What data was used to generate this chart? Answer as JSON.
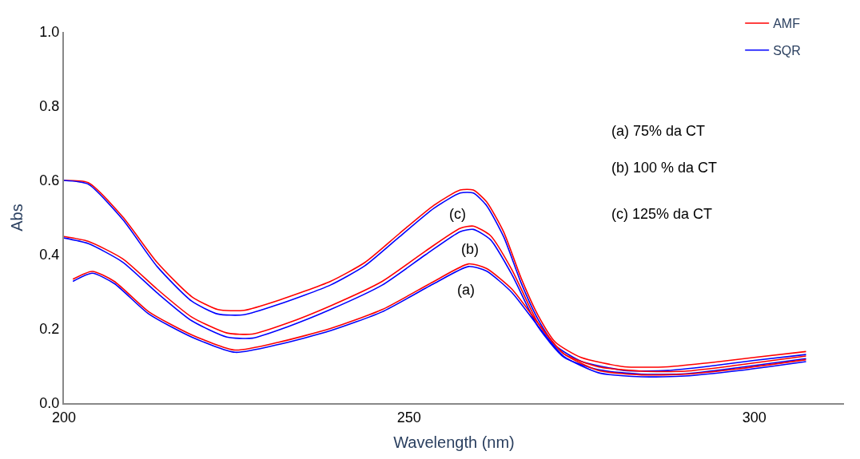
{
  "chart_data": {
    "type": "line",
    "xlabel": "Wavelength (nm)",
    "ylabel": "Abs",
    "xlim": [
      200,
      313
    ],
    "ylim": [
      0.0,
      1.0
    ],
    "xticks": [
      200,
      250,
      300
    ],
    "yticks": [
      {
        "value": 0.0,
        "label": "0.0"
      },
      0.2,
      0.4,
      0.6,
      0.8,
      {
        "value": 1.0,
        "label": "1.0"
      }
    ],
    "legend": "top right",
    "marker": "none",
    "line_style": "solid",
    "series": [
      {
        "name": "AMF",
        "color": "#ff0000",
        "x": [
          200,
          203.5,
          208.5,
          213.5,
          218.5,
          222.3,
          226.1,
          231.1,
          238.6,
          243.6,
          248.6,
          253.6,
          257.4,
          259.3,
          261.2,
          263.7,
          266.2,
          268.7,
          271.2,
          274.9,
          281.2,
          287.5,
          293.7,
          300,
          307.5
        ],
        "values": [
          0.6,
          0.594,
          0.502,
          0.379,
          0.287,
          0.252,
          0.25,
          0.277,
          0.328,
          0.379,
          0.457,
          0.533,
          0.574,
          0.574,
          0.543,
          0.461,
          0.338,
          0.236,
          0.164,
          0.123,
          0.098,
          0.098,
          0.109,
          0.123,
          0.139
        ]
      },
      {
        "name": "SQR",
        "color": "#0000ff",
        "x": [
          200,
          203.5,
          208.5,
          213.5,
          218.5,
          222.3,
          226.1,
          231.1,
          238.6,
          243.6,
          248.6,
          253.6,
          257.4,
          259.3,
          261.2,
          263.7,
          266.2,
          268.7,
          271.2,
          274.9,
          281.2,
          287.5,
          293.7,
          300,
          307.5
        ],
        "values": [
          0.6,
          0.59,
          0.495,
          0.368,
          0.275,
          0.24,
          0.238,
          0.266,
          0.318,
          0.37,
          0.448,
          0.525,
          0.566,
          0.566,
          0.533,
          0.448,
          0.325,
          0.225,
          0.155,
          0.113,
          0.088,
          0.088,
          0.1,
          0.115,
          0.131
        ]
      },
      {
        "color": "#ff0000",
        "x": [
          200,
          203.5,
          208.5,
          213.5,
          218.5,
          223.6,
          227.3,
          232.3,
          238.6,
          246.1,
          252.4,
          257.4,
          259.3,
          261.8,
          264.9,
          268.7,
          272.4,
          277.4,
          283.7,
          290,
          297.5,
          307.5
        ],
        "values": [
          0.449,
          0.436,
          0.389,
          0.307,
          0.232,
          0.189,
          0.186,
          0.215,
          0.262,
          0.328,
          0.41,
          0.471,
          0.477,
          0.451,
          0.359,
          0.215,
          0.133,
          0.098,
          0.086,
          0.086,
          0.102,
          0.127
        ]
      },
      {
        "color": "#0000ff",
        "x": [
          200,
          203.5,
          208.5,
          213.5,
          218.5,
          223.6,
          227.3,
          232.3,
          238.6,
          246.1,
          252.4,
          257.4,
          259.3,
          261.8,
          264.9,
          268.7,
          272.4,
          277.4,
          283.7,
          290,
          297.5,
          307.5
        ],
        "values": [
          0.445,
          0.43,
          0.38,
          0.297,
          0.222,
          0.178,
          0.175,
          0.205,
          0.252,
          0.318,
          0.4,
          0.462,
          0.468,
          0.44,
          0.346,
          0.205,
          0.124,
          0.09,
          0.078,
          0.079,
          0.095,
          0.12
        ]
      },
      {
        "color": "#ff0000",
        "x": [
          201.3,
          204.1,
          207.3,
          212.3,
          218.5,
          224.8,
          231.1,
          238.6,
          246.1,
          253.6,
          258.6,
          261.2,
          264.9,
          268.7,
          272.4,
          277.4,
          283.7,
          290,
          297.5,
          307.5
        ],
        "values": [
          0.334,
          0.355,
          0.328,
          0.246,
          0.184,
          0.143,
          0.164,
          0.201,
          0.252,
          0.328,
          0.375,
          0.363,
          0.307,
          0.215,
          0.133,
          0.088,
          0.076,
          0.078,
          0.092,
          0.117
        ]
      },
      {
        "color": "#0000ff",
        "x": [
          201.3,
          204.1,
          207.3,
          212.3,
          218.5,
          224.8,
          231.1,
          238.6,
          246.1,
          253.6,
          258.6,
          261.2,
          264.9,
          268.7,
          272.4,
          277.4,
          283.7,
          290,
          297.5,
          307.5
        ],
        "values": [
          0.328,
          0.35,
          0.322,
          0.24,
          0.178,
          0.137,
          0.158,
          0.195,
          0.246,
          0.322,
          0.368,
          0.356,
          0.298,
          0.207,
          0.126,
          0.082,
          0.071,
          0.073,
          0.087,
          0.112
        ]
      }
    ],
    "annotations": [
      "(c)",
      "(b)",
      "(a)",
      "(a) 75% da CT",
      "(b) 100 % da CT",
      "(c) 125% da CT"
    ]
  }
}
